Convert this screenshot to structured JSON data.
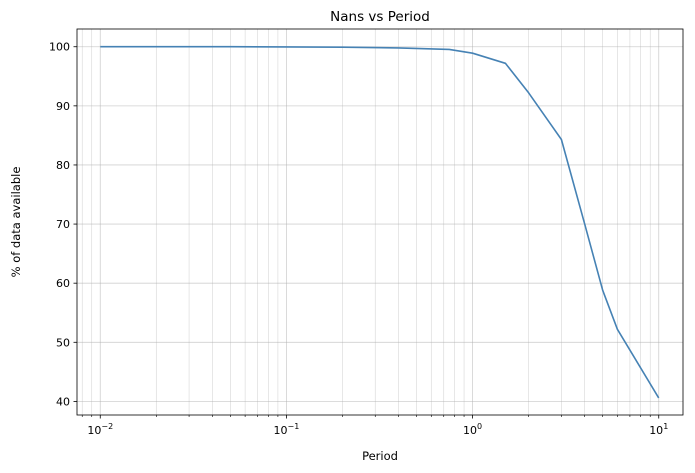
{
  "chart_data": {
    "type": "line",
    "title": "Nans vs Period",
    "xlabel": "Period",
    "ylabel": "% of data available",
    "xscale": "log",
    "xlim": [
      0.0075,
      13.5
    ],
    "ylim": [
      37.7,
      103.0
    ],
    "grid": "major and minor, both axes",
    "x_ticks": [
      {
        "value": 0.01,
        "base": "10",
        "exp": "−2"
      },
      {
        "value": 0.1,
        "base": "10",
        "exp": "−1"
      },
      {
        "value": 1,
        "base": "10",
        "exp": "0"
      },
      {
        "value": 10,
        "base": "10",
        "exp": "1"
      }
    ],
    "y_ticks": [
      40,
      50,
      60,
      70,
      80,
      90,
      100
    ],
    "series": [
      {
        "color": "#4682b4",
        "x": [
          0.01,
          0.02,
          0.05,
          0.1,
          0.2,
          0.4,
          0.75,
          1.0,
          1.5,
          2.0,
          3.0,
          4.0,
          5.0,
          6.0,
          10.0
        ],
        "y": [
          100.0,
          100.0,
          100.0,
          99.98,
          99.92,
          99.8,
          99.55,
          98.9,
          97.2,
          92.2,
          84.3,
          70.0,
          58.8,
          52.2,
          40.6
        ]
      }
    ]
  }
}
